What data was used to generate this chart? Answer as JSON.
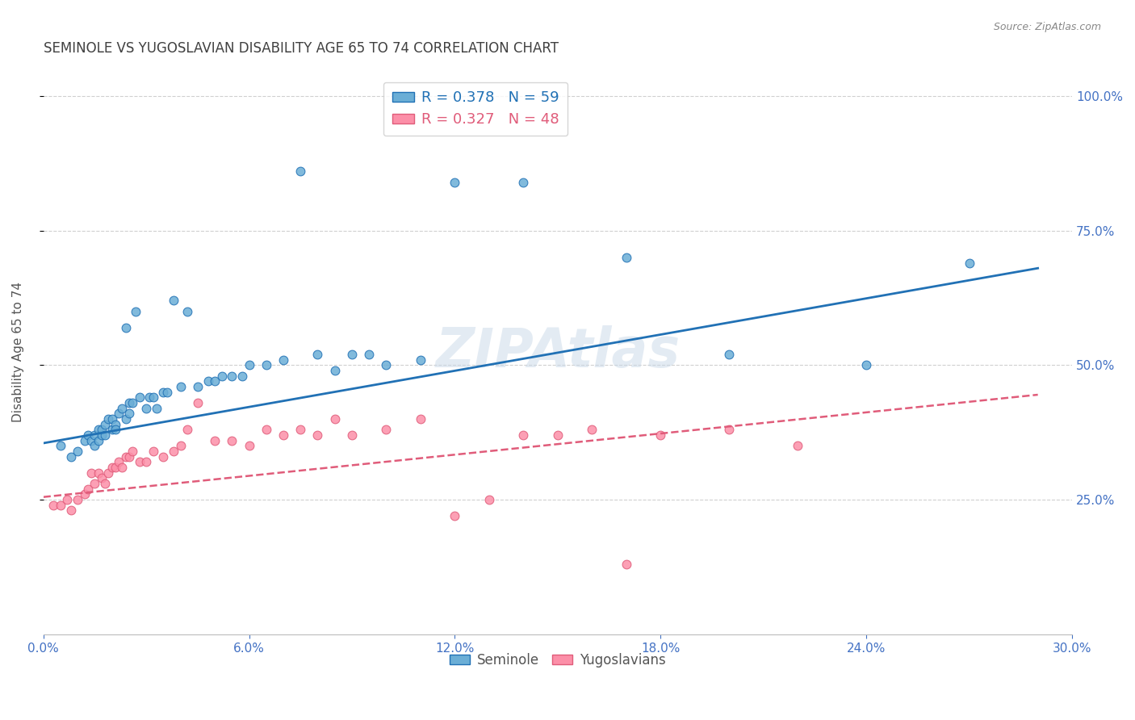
{
  "title": "SEMINOLE VS YUGOSLAVIAN DISABILITY AGE 65 TO 74 CORRELATION CHART",
  "source": "Source: ZipAtlas.com",
  "ylabel": "Disability Age 65 to 74",
  "seminole_R": 0.378,
  "seminole_N": 59,
  "yugoslavian_R": 0.327,
  "yugoslavian_N": 48,
  "blue_color": "#6baed6",
  "pink_color": "#fc8fa8",
  "blue_line_color": "#2171b5",
  "pink_line_color": "#e05c7a",
  "axis_label_color": "#4472c4",
  "title_color": "#404040",
  "watermark_color": "#c8d8e8",
  "grid_color": "#d0d0d0",
  "background_color": "#ffffff",
  "seminole_x": [
    0.5,
    0.8,
    1.0,
    1.2,
    1.3,
    1.4,
    1.5,
    1.5,
    1.6,
    1.6,
    1.7,
    1.7,
    1.8,
    1.8,
    1.9,
    2.0,
    2.0,
    2.1,
    2.1,
    2.2,
    2.3,
    2.4,
    2.4,
    2.5,
    2.5,
    2.6,
    2.7,
    2.8,
    3.0,
    3.1,
    3.2,
    3.3,
    3.5,
    3.6,
    3.8,
    4.0,
    4.2,
    4.5,
    4.8,
    5.0,
    5.2,
    5.5,
    5.8,
    6.0,
    6.5,
    7.0,
    7.5,
    8.0,
    8.5,
    9.0,
    9.5,
    10.0,
    11.0,
    12.0,
    14.0,
    17.0,
    20.0,
    24.0,
    27.0
  ],
  "seminole_y": [
    35,
    33,
    34,
    36,
    37,
    36,
    35,
    37,
    38,
    36,
    37,
    38,
    39,
    37,
    40,
    40,
    38,
    39,
    38,
    41,
    42,
    40,
    57,
    41,
    43,
    43,
    60,
    44,
    42,
    44,
    44,
    42,
    45,
    45,
    62,
    46,
    60,
    46,
    47,
    47,
    48,
    48,
    48,
    50,
    50,
    51,
    86,
    52,
    49,
    52,
    52,
    50,
    51,
    84,
    84,
    70,
    52,
    50,
    69
  ],
  "yugoslavian_x": [
    0.3,
    0.5,
    0.7,
    0.8,
    1.0,
    1.2,
    1.3,
    1.4,
    1.5,
    1.6,
    1.7,
    1.8,
    1.9,
    2.0,
    2.1,
    2.2,
    2.3,
    2.4,
    2.5,
    2.6,
    2.8,
    3.0,
    3.2,
    3.5,
    3.8,
    4.0,
    4.2,
    4.5,
    5.0,
    5.5,
    6.0,
    6.5,
    7.0,
    7.5,
    8.0,
    8.5,
    9.0,
    10.0,
    11.0,
    12.0,
    13.0,
    14.0,
    15.0,
    16.0,
    17.0,
    18.0,
    20.0,
    22.0
  ],
  "yugoslavian_y": [
    24,
    24,
    25,
    23,
    25,
    26,
    27,
    30,
    28,
    30,
    29,
    28,
    30,
    31,
    31,
    32,
    31,
    33,
    33,
    34,
    32,
    32,
    34,
    33,
    34,
    35,
    38,
    43,
    36,
    36,
    35,
    38,
    37,
    38,
    37,
    40,
    37,
    38,
    40,
    22,
    25,
    37,
    37,
    38,
    13,
    37,
    38,
    35
  ],
  "seminole_trend_x": [
    0.0,
    29.0
  ],
  "seminole_trend_y": [
    35.5,
    68.0
  ],
  "yugoslavian_trend_x": [
    0.0,
    29.0
  ],
  "yugoslavian_trend_y": [
    25.5,
    44.5
  ],
  "xmin": 0.0,
  "xmax": 30.0,
  "ymin": 0.0,
  "ymax": 105.0,
  "legend_labels": [
    "R = 0.378   N = 59",
    "R = 0.327   N = 48"
  ]
}
